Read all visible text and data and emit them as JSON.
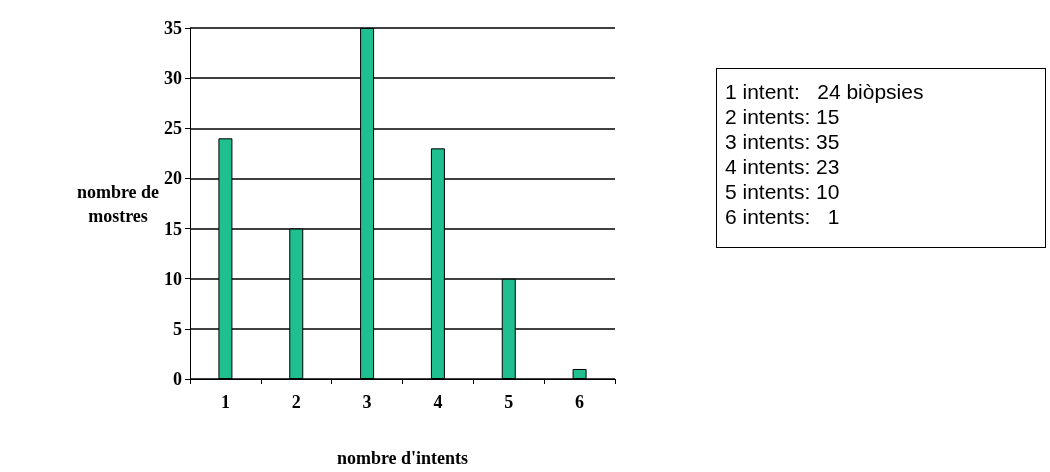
{
  "chart_data": {
    "type": "bar",
    "xlabel": "nombre d'intents",
    "ylabel": "nombre de mostres",
    "categories": [
      "1",
      "2",
      "3",
      "4",
      "5",
      "6"
    ],
    "values": [
      24,
      15,
      35,
      23,
      10,
      1
    ],
    "color": "#1fbf8f",
    "ylim": [
      0,
      35
    ],
    "yticks": [
      0,
      5,
      10,
      15,
      20,
      25,
      30,
      35
    ],
    "grid": "y",
    "annotations": [
      "1 intent:   24 biòpsies",
      "2 intents: 15",
      "3 intents: 35",
      "4 intents: 23",
      "5 intents: 10",
      "6 intents:   1"
    ]
  }
}
